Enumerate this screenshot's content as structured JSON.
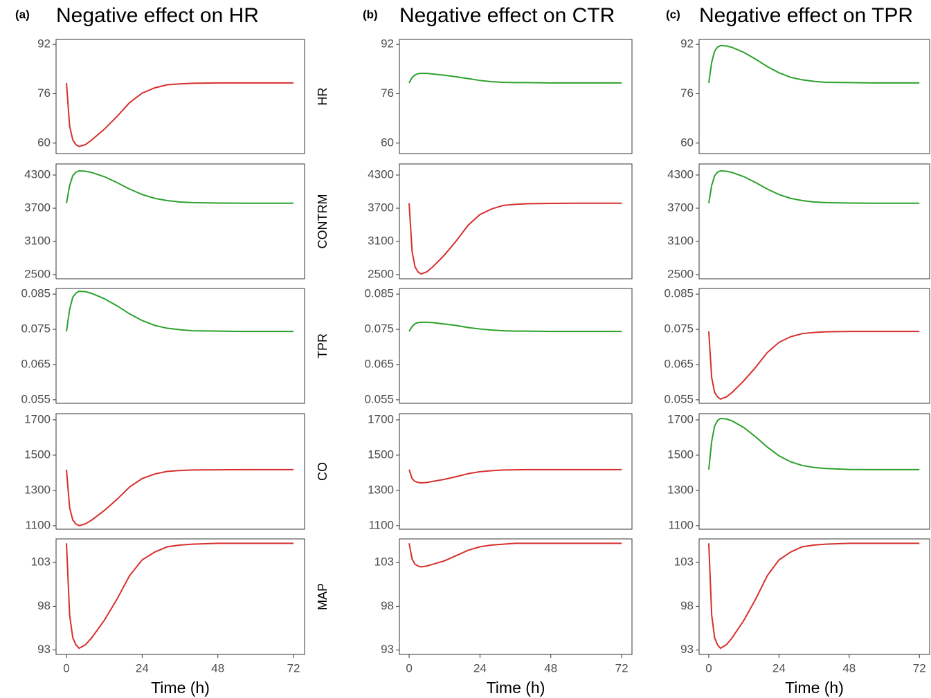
{
  "chart_data": [
    {
      "type": "line",
      "tag": "(a)",
      "title": "Negative effect on HR",
      "x": [
        0,
        1,
        2,
        3,
        4,
        6,
        8,
        12,
        16,
        20,
        24,
        28,
        32,
        36,
        40,
        48,
        56,
        64,
        72
      ],
      "xlim": [
        -3.3,
        75.5
      ],
      "ylim": [
        56.6,
        93.6
      ],
      "yticks": [
        60,
        76,
        92
      ],
      "series": [
        {
          "color": "#d62f2c",
          "values": [
            79.5,
            65.5,
            61,
            59.5,
            58.9,
            59.5,
            61,
            64.5,
            68.6,
            73.1,
            76.2,
            77.9,
            78.9,
            79.2,
            79.4,
            79.5,
            79.5,
            79.5,
            79.5
          ]
        }
      ]
    },
    {
      "type": "line",
      "x": [
        0,
        1,
        2,
        3,
        4,
        6,
        8,
        12,
        16,
        20,
        24,
        28,
        32,
        36,
        40,
        48,
        56,
        64,
        72
      ],
      "xlim": [
        -3.3,
        75.5
      ],
      "ylim": [
        2425,
        4500
      ],
      "yticks": [
        2500,
        3100,
        3700,
        4300
      ],
      "series": [
        {
          "color": "#2ca02c",
          "values": [
            3790,
            4112,
            4287,
            4352,
            4375,
            4369,
            4346,
            4270,
            4164,
            4047,
            3948,
            3878,
            3837,
            3813,
            3802,
            3793,
            3790,
            3790,
            3790
          ]
        }
      ]
    },
    {
      "type": "line",
      "x": [
        0,
        1,
        2,
        3,
        4,
        6,
        8,
        12,
        16,
        20,
        24,
        28,
        32,
        36,
        40,
        48,
        56,
        64,
        72
      ],
      "xlim": [
        -3.3,
        75.5
      ],
      "ylim": [
        0.054,
        0.0866
      ],
      "yticks": [
        0.055,
        0.065,
        0.075,
        0.085
      ],
      "series": [
        {
          "color": "#2ca02c",
          "values": [
            0.0744,
            0.0807,
            0.0841,
            0.0853,
            0.0858,
            0.0857,
            0.0852,
            0.0837,
            0.0817,
            0.0794,
            0.0775,
            0.0761,
            0.0753,
            0.0749,
            0.0746,
            0.0745,
            0.0744,
            0.0744,
            0.0744
          ]
        }
      ]
    },
    {
      "type": "line",
      "x": [
        0,
        1,
        2,
        3,
        4,
        6,
        8,
        12,
        16,
        20,
        24,
        28,
        32,
        36,
        40,
        48,
        56,
        64,
        72
      ],
      "xlim": [
        -3.3,
        75.5
      ],
      "ylim": [
        1080,
        1735
      ],
      "yticks": [
        1100,
        1300,
        1500,
        1700
      ],
      "series": [
        {
          "color": "#d62f2c",
          "values": [
            1418,
            1202,
            1132,
            1110,
            1100,
            1110,
            1132,
            1186,
            1249,
            1319,
            1367,
            1393,
            1408,
            1413,
            1416,
            1417,
            1418,
            1418,
            1418
          ]
        }
      ]
    },
    {
      "type": "line",
      "x": [
        0,
        1,
        2,
        3,
        4,
        6,
        8,
        12,
        16,
        20,
        24,
        28,
        32,
        36,
        40,
        48,
        56,
        64,
        72
      ],
      "xlim": [
        -3.3,
        75.5
      ],
      "xticks": [
        0,
        24,
        48,
        72
      ],
      "xlabel": "Time (h)",
      "ylim": [
        92.5,
        105.7
      ],
      "yticks": [
        93,
        98,
        103
      ],
      "series": [
        {
          "color": "#d62f2c",
          "values": [
            105.2,
            97.0,
            94.4,
            93.6,
            93.2,
            93.6,
            94.4,
            96.4,
            98.8,
            101.5,
            103.3,
            104.2,
            104.8,
            105.0,
            105.1,
            105.2,
            105.2,
            105.2,
            105.2
          ]
        }
      ]
    },
    {
      "type": "line",
      "tag": "(b)",
      "title": "Negative effect on CTR",
      "ylabel": "HR",
      "x": [
        0,
        1,
        2,
        3,
        4,
        6,
        8,
        12,
        16,
        20,
        24,
        28,
        32,
        36,
        40,
        48,
        56,
        64,
        72
      ],
      "xlim": [
        -3.3,
        75.5
      ],
      "ylim": [
        56.6,
        93.6
      ],
      "yticks": [
        60,
        76,
        92
      ],
      "series": [
        {
          "color": "#2ca02c",
          "values": [
            79.5,
            81.2,
            82.1,
            82.5,
            82.6,
            82.6,
            82.4,
            82.0,
            81.5,
            80.9,
            80.3,
            79.9,
            79.7,
            79.6,
            79.6,
            79.5,
            79.5,
            79.5,
            79.5
          ]
        }
      ]
    },
    {
      "type": "line",
      "ylabel": "CONTRM",
      "x": [
        0,
        1,
        2,
        3,
        4,
        6,
        8,
        12,
        16,
        20,
        24,
        28,
        32,
        36,
        40,
        48,
        56,
        64,
        72
      ],
      "xlim": [
        -3.3,
        75.5
      ],
      "ylim": [
        2425,
        4500
      ],
      "yticks": [
        2500,
        3100,
        3700,
        4300
      ],
      "series": [
        {
          "color": "#d62f2c",
          "values": [
            3790,
            2921,
            2640,
            2550,
            2512,
            2550,
            2640,
            2857,
            3113,
            3394,
            3586,
            3688,
            3752,
            3771,
            3781,
            3787,
            3790,
            3790,
            3790
          ]
        }
      ]
    },
    {
      "type": "line",
      "ylabel": "TPR",
      "x": [
        0,
        1,
        2,
        3,
        4,
        6,
        8,
        12,
        16,
        20,
        24,
        28,
        32,
        36,
        40,
        48,
        56,
        64,
        72
      ],
      "xlim": [
        -3.3,
        75.5
      ],
      "ylim": [
        0.054,
        0.0866
      ],
      "yticks": [
        0.055,
        0.065,
        0.075,
        0.085
      ],
      "series": [
        {
          "color": "#2ca02c",
          "values": [
            0.0744,
            0.0758,
            0.0766,
            0.0769,
            0.077,
            0.077,
            0.0769,
            0.0765,
            0.0761,
            0.0755,
            0.0751,
            0.0748,
            0.0746,
            0.0745,
            0.0745,
            0.0744,
            0.0744,
            0.0744,
            0.0744
          ]
        }
      ]
    },
    {
      "type": "line",
      "ylabel": "CO",
      "x": [
        0,
        1,
        2,
        3,
        4,
        6,
        8,
        12,
        16,
        20,
        24,
        28,
        32,
        36,
        40,
        48,
        56,
        64,
        72
      ],
      "xlim": [
        -3.3,
        75.5
      ],
      "ylim": [
        1080,
        1735
      ],
      "yticks": [
        1100,
        1300,
        1500,
        1700
      ],
      "series": [
        {
          "color": "#d62f2c",
          "values": [
            1418,
            1367,
            1351,
            1345,
            1343,
            1345,
            1351,
            1363,
            1378,
            1395,
            1406,
            1412,
            1416,
            1417,
            1418,
            1418,
            1418,
            1418,
            1418
          ]
        }
      ]
    },
    {
      "type": "line",
      "ylabel": "MAP",
      "x": [
        0,
        1,
        2,
        3,
        4,
        6,
        8,
        12,
        16,
        20,
        24,
        28,
        32,
        36,
        40,
        48,
        56,
        64,
        72
      ],
      "xlim": [
        -3.3,
        75.5
      ],
      "xticks": [
        0,
        24,
        48,
        72
      ],
      "xlabel": "Time (h)",
      "ylim": [
        92.5,
        105.7
      ],
      "yticks": [
        93,
        98,
        103
      ],
      "series": [
        {
          "color": "#d62f2c",
          "values": [
            105.2,
            103.4,
            102.8,
            102.6,
            102.5,
            102.6,
            102.8,
            103.2,
            103.8,
            104.4,
            104.8,
            105.0,
            105.1,
            105.2,
            105.2,
            105.2,
            105.2,
            105.2,
            105.2
          ]
        }
      ]
    },
    {
      "type": "line",
      "tag": "(c)",
      "title": "Negative effect on TPR",
      "x": [
        0,
        1,
        2,
        3,
        4,
        6,
        8,
        12,
        16,
        20,
        24,
        28,
        32,
        36,
        40,
        48,
        56,
        64,
        72
      ],
      "xlim": [
        -3.3,
        75.5
      ],
      "ylim": [
        56.6,
        93.6
      ],
      "yticks": [
        60,
        76,
        92
      ],
      "series": [
        {
          "color": "#2ca02c",
          "values": [
            79.5,
            86.2,
            89.8,
            91.1,
            91.6,
            91.5,
            91.0,
            89.4,
            87.2,
            84.8,
            82.8,
            81.3,
            80.5,
            80.0,
            79.7,
            79.6,
            79.5,
            79.5,
            79.5
          ]
        }
      ]
    },
    {
      "type": "line",
      "x": [
        0,
        1,
        2,
        3,
        4,
        6,
        8,
        12,
        16,
        20,
        24,
        28,
        32,
        36,
        40,
        48,
        56,
        64,
        72
      ],
      "xlim": [
        -3.3,
        75.5
      ],
      "ylim": [
        2425,
        4500
      ],
      "yticks": [
        2500,
        3100,
        3700,
        4300
      ],
      "series": [
        {
          "color": "#2ca02c",
          "values": [
            3790,
            4112,
            4287,
            4352,
            4375,
            4369,
            4346,
            4270,
            4164,
            4047,
            3948,
            3878,
            3837,
            3813,
            3802,
            3793,
            3790,
            3790,
            3790
          ]
        }
      ]
    },
    {
      "type": "line",
      "x": [
        0,
        1,
        2,
        3,
        4,
        6,
        8,
        12,
        16,
        20,
        24,
        28,
        32,
        36,
        40,
        48,
        56,
        64,
        72
      ],
      "xlim": [
        -3.3,
        75.5
      ],
      "ylim": [
        0.054,
        0.0866
      ],
      "yticks": [
        0.055,
        0.065,
        0.075,
        0.085
      ],
      "series": [
        {
          "color": "#d62f2c",
          "values": [
            0.0744,
            0.0613,
            0.0571,
            0.0558,
            0.0552,
            0.0558,
            0.0571,
            0.0604,
            0.0642,
            0.0684,
            0.0713,
            0.0729,
            0.0738,
            0.0741,
            0.0743,
            0.0744,
            0.0744,
            0.0744,
            0.0744
          ]
        }
      ]
    },
    {
      "type": "line",
      "x": [
        0,
        1,
        2,
        3,
        4,
        6,
        8,
        12,
        16,
        20,
        24,
        28,
        32,
        36,
        40,
        48,
        56,
        64,
        72
      ],
      "xlim": [
        -3.3,
        75.5
      ],
      "ylim": [
        1080,
        1735
      ],
      "yticks": [
        1100,
        1300,
        1500,
        1700
      ],
      "series": [
        {
          "color": "#2ca02c",
          "values": [
            1418,
            1578,
            1665,
            1696,
            1708,
            1705,
            1694,
            1656,
            1604,
            1546,
            1496,
            1462,
            1441,
            1430,
            1424,
            1419,
            1418,
            1418,
            1418
          ]
        }
      ]
    },
    {
      "type": "line",
      "x": [
        0,
        1,
        2,
        3,
        4,
        6,
        8,
        12,
        16,
        20,
        24,
        28,
        32,
        36,
        40,
        48,
        56,
        64,
        72
      ],
      "xlim": [
        -3.3,
        75.5
      ],
      "xticks": [
        0,
        24,
        48,
        72
      ],
      "xlabel": "Time (h)",
      "ylim": [
        92.5,
        105.7
      ],
      "yticks": [
        93,
        98,
        103
      ],
      "series": [
        {
          "color": "#d62f2c",
          "values": [
            105.2,
            97.0,
            94.4,
            93.6,
            93.2,
            93.6,
            94.4,
            96.4,
            98.8,
            101.5,
            103.3,
            104.2,
            104.8,
            105.0,
            105.1,
            105.2,
            105.2,
            105.2,
            105.2
          ]
        }
      ]
    }
  ]
}
